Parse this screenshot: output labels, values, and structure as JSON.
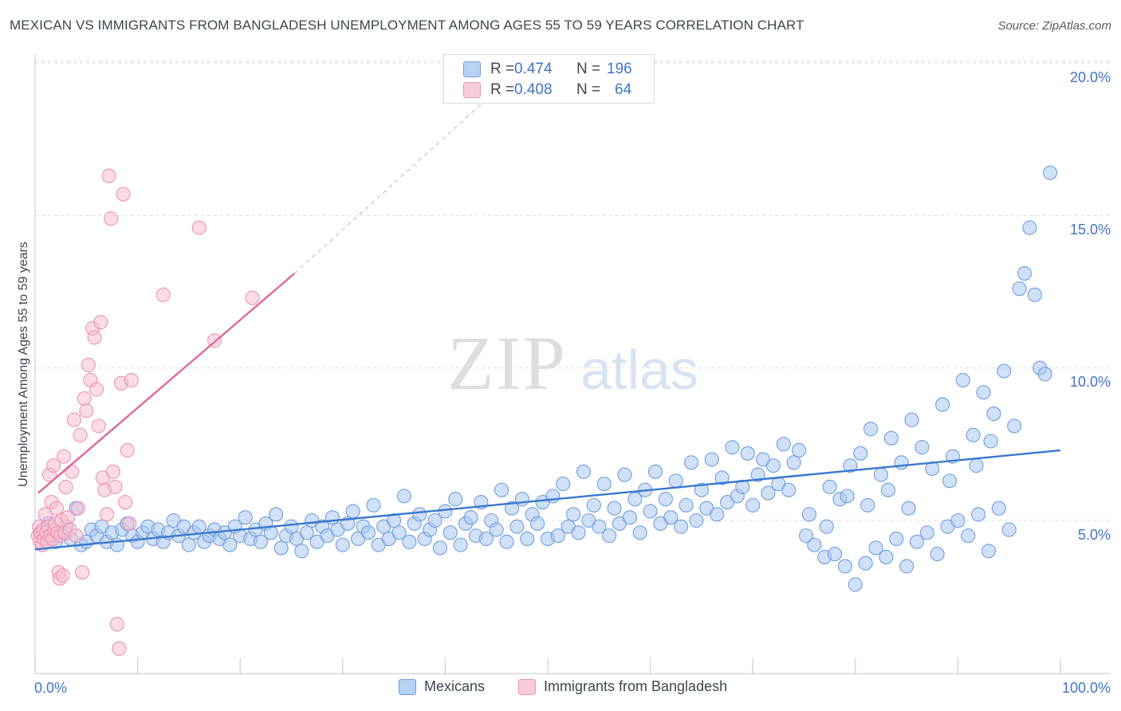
{
  "header": {
    "title": "MEXICAN VS IMMIGRANTS FROM BANGLADESH UNEMPLOYMENT AMONG AGES 55 TO 59 YEARS CORRELATION CHART",
    "source": "Source: ZipAtlas.com"
  },
  "watermark": {
    "zip": "ZIP",
    "atlas": "atlas"
  },
  "legend_top": {
    "rows": [
      {
        "r_label": "R =",
        "r_value": "0.474",
        "n_label": "N =",
        "n_value": "196"
      },
      {
        "r_label": "R =",
        "r_value": "0.408",
        "n_label": "N =",
        "n_value": "64"
      }
    ]
  },
  "legend_bottom": {
    "items": [
      "Mexicans",
      "Immigrants from Bangladesh"
    ]
  },
  "colors": {
    "blue_fill": "#a9c7f0",
    "blue_stroke": "#6f9fdc",
    "blue_line": "#3a77d0",
    "pink_fill": "#f7c0d1",
    "pink_stroke": "#eb94b1",
    "pink_line": "#e0679a",
    "tick_text": "#3f74c9",
    "grid": "#dddddd"
  },
  "chart_data": {
    "type": "scatter",
    "title": "MEXICAN VS IMMIGRANTS FROM BANGLADESH UNEMPLOYMENT AMONG AGES 55 TO 59 YEARS CORRELATION CHART",
    "xlabel": "",
    "ylabel": "Unemployment Among Ages 55 to 59 years",
    "xlim": [
      0,
      100
    ],
    "ylim": [
      0,
      20.8
    ],
    "x_tick_labels": [
      "0.0%",
      "100.0%"
    ],
    "y_ticks": [
      5,
      10,
      15,
      20
    ],
    "y_tick_labels": [
      "5.0%",
      "10.0%",
      "15.0%",
      "20.0%"
    ],
    "grid": true,
    "legend_position": "top-center",
    "series": [
      {
        "name": "Mexicans",
        "R": 0.474,
        "N": 196,
        "trend": {
          "x": [
            0,
            100
          ],
          "y": [
            4.05,
            7.3
          ]
        },
        "points": [
          [
            0.5,
            4.6
          ],
          [
            1.0,
            4.7
          ],
          [
            1.3,
            4.9
          ],
          [
            1.6,
            4.5
          ],
          [
            2.0,
            4.3
          ],
          [
            2.5,
            4.6
          ],
          [
            3.0,
            4.8
          ],
          [
            3.5,
            4.4
          ],
          [
            4.0,
            5.4
          ],
          [
            4.5,
            4.2
          ],
          [
            5.0,
            4.3
          ],
          [
            5.5,
            4.7
          ],
          [
            6.0,
            4.5
          ],
          [
            6.5,
            4.8
          ],
          [
            7.0,
            4.3
          ],
          [
            7.5,
            4.6
          ],
          [
            8.0,
            4.2
          ],
          [
            8.5,
            4.7
          ],
          [
            9.0,
            4.9
          ],
          [
            9.5,
            4.5
          ],
          [
            10.0,
            4.3
          ],
          [
            10.5,
            4.6
          ],
          [
            11.0,
            4.8
          ],
          [
            11.5,
            4.4
          ],
          [
            12.0,
            4.7
          ],
          [
            12.5,
            4.3
          ],
          [
            13.0,
            4.6
          ],
          [
            13.5,
            5.0
          ],
          [
            14.0,
            4.5
          ],
          [
            14.5,
            4.8
          ],
          [
            15.0,
            4.2
          ],
          [
            15.5,
            4.6
          ],
          [
            16.0,
            4.8
          ],
          [
            16.5,
            4.3
          ],
          [
            17.0,
            4.5
          ],
          [
            17.5,
            4.7
          ],
          [
            18.0,
            4.4
          ],
          [
            18.5,
            4.6
          ],
          [
            19.0,
            4.2
          ],
          [
            19.5,
            4.8
          ],
          [
            20.0,
            4.5
          ],
          [
            20.5,
            5.1
          ],
          [
            21.0,
            4.4
          ],
          [
            21.5,
            4.7
          ],
          [
            22.0,
            4.3
          ],
          [
            22.5,
            4.9
          ],
          [
            23.0,
            4.6
          ],
          [
            23.5,
            5.2
          ],
          [
            24.0,
            4.1
          ],
          [
            24.5,
            4.5
          ],
          [
            25.0,
            4.8
          ],
          [
            25.5,
            4.4
          ],
          [
            26.0,
            4.0
          ],
          [
            26.5,
            4.6
          ],
          [
            27.0,
            5.0
          ],
          [
            27.5,
            4.3
          ],
          [
            28.0,
            4.8
          ],
          [
            28.5,
            4.5
          ],
          [
            29.0,
            5.1
          ],
          [
            29.5,
            4.7
          ],
          [
            30.0,
            4.2
          ],
          [
            30.5,
            4.9
          ],
          [
            31.0,
            5.3
          ],
          [
            31.5,
            4.4
          ],
          [
            32.0,
            4.8
          ],
          [
            32.5,
            4.6
          ],
          [
            33.0,
            5.5
          ],
          [
            33.5,
            4.2
          ],
          [
            34.0,
            4.8
          ],
          [
            34.5,
            4.4
          ],
          [
            35.0,
            5.0
          ],
          [
            35.5,
            4.6
          ],
          [
            36.0,
            5.8
          ],
          [
            36.5,
            4.3
          ],
          [
            37.0,
            4.9
          ],
          [
            37.5,
            5.2
          ],
          [
            38.0,
            4.4
          ],
          [
            38.5,
            4.7
          ],
          [
            39.0,
            5.0
          ],
          [
            39.5,
            4.1
          ],
          [
            40.0,
            5.3
          ],
          [
            40.5,
            4.6
          ],
          [
            41.0,
            5.7
          ],
          [
            41.5,
            4.2
          ],
          [
            42.0,
            4.9
          ],
          [
            42.5,
            5.1
          ],
          [
            43.0,
            4.5
          ],
          [
            43.5,
            5.6
          ],
          [
            44.0,
            4.4
          ],
          [
            44.5,
            5.0
          ],
          [
            45.0,
            4.7
          ],
          [
            45.5,
            6.0
          ],
          [
            46.0,
            4.3
          ],
          [
            46.5,
            5.4
          ],
          [
            47.0,
            4.8
          ],
          [
            47.5,
            5.7
          ],
          [
            48.0,
            4.4
          ],
          [
            48.5,
            5.2
          ],
          [
            49.0,
            4.9
          ],
          [
            49.5,
            5.6
          ],
          [
            50.0,
            4.4
          ],
          [
            50.5,
            5.8
          ],
          [
            51.0,
            4.5
          ],
          [
            51.5,
            6.2
          ],
          [
            52.0,
            4.8
          ],
          [
            52.5,
            5.2
          ],
          [
            53.0,
            4.6
          ],
          [
            53.5,
            6.6
          ],
          [
            54.0,
            5.0
          ],
          [
            54.5,
            5.5
          ],
          [
            55.0,
            4.8
          ],
          [
            55.5,
            6.2
          ],
          [
            56.0,
            4.5
          ],
          [
            56.5,
            5.4
          ],
          [
            57.0,
            4.9
          ],
          [
            57.5,
            6.5
          ],
          [
            58.0,
            5.1
          ],
          [
            58.5,
            5.7
          ],
          [
            59.0,
            4.6
          ],
          [
            59.5,
            6.0
          ],
          [
            60.0,
            5.3
          ],
          [
            60.5,
            6.6
          ],
          [
            61.0,
            4.9
          ],
          [
            61.5,
            5.7
          ],
          [
            62.0,
            5.1
          ],
          [
            62.5,
            6.3
          ],
          [
            63.0,
            4.8
          ],
          [
            63.5,
            5.5
          ],
          [
            64.0,
            6.9
          ],
          [
            64.5,
            5.0
          ],
          [
            65.0,
            6.0
          ],
          [
            65.5,
            5.4
          ],
          [
            66.0,
            7.0
          ],
          [
            66.5,
            5.2
          ],
          [
            67.0,
            6.4
          ],
          [
            67.5,
            5.6
          ],
          [
            68.0,
            7.4
          ],
          [
            68.5,
            5.8
          ],
          [
            69.0,
            6.1
          ],
          [
            69.5,
            7.2
          ],
          [
            70.0,
            5.5
          ],
          [
            70.5,
            6.5
          ],
          [
            71.0,
            7.0
          ],
          [
            71.5,
            5.9
          ],
          [
            72.0,
            6.8
          ],
          [
            72.5,
            6.2
          ],
          [
            73.0,
            7.5
          ],
          [
            73.5,
            6.0
          ],
          [
            74.0,
            6.9
          ],
          [
            74.5,
            7.3
          ],
          [
            76.0,
            4.2
          ],
          [
            77.0,
            3.8
          ],
          [
            78.0,
            3.9
          ],
          [
            79.0,
            3.5
          ],
          [
            80.0,
            2.9
          ],
          [
            81.0,
            3.6
          ],
          [
            82.0,
            4.1
          ],
          [
            83.0,
            3.8
          ],
          [
            84.0,
            4.4
          ],
          [
            85.0,
            3.5
          ],
          [
            86.0,
            4.3
          ],
          [
            87.0,
            4.6
          ],
          [
            88.0,
            3.9
          ],
          [
            89.0,
            4.8
          ],
          [
            90.0,
            5.0
          ],
          [
            91.0,
            4.5
          ],
          [
            92.0,
            5.2
          ],
          [
            93.0,
            4.0
          ],
          [
            94.0,
            5.4
          ],
          [
            95.0,
            4.7
          ],
          [
            75.5,
            5.2
          ],
          [
            77.5,
            6.1
          ],
          [
            78.5,
            5.7
          ],
          [
            79.5,
            6.8
          ],
          [
            80.5,
            7.2
          ],
          [
            81.5,
            8.0
          ],
          [
            82.5,
            6.5
          ],
          [
            83.5,
            7.7
          ],
          [
            84.5,
            6.9
          ],
          [
            85.5,
            8.3
          ],
          [
            86.5,
            7.4
          ],
          [
            87.5,
            6.7
          ],
          [
            88.5,
            8.8
          ],
          [
            89.5,
            7.1
          ],
          [
            90.5,
            9.6
          ],
          [
            91.5,
            7.8
          ],
          [
            92.5,
            9.2
          ],
          [
            93.5,
            8.5
          ],
          [
            94.5,
            9.9
          ],
          [
            95.5,
            8.1
          ],
          [
            96.0,
            12.6
          ],
          [
            96.5,
            13.1
          ],
          [
            97.0,
            14.6
          ],
          [
            97.5,
            12.4
          ],
          [
            98.0,
            10.0
          ],
          [
            98.5,
            9.8
          ],
          [
            99.0,
            16.4
          ],
          [
            93.2,
            7.6
          ],
          [
            91.8,
            6.8
          ],
          [
            89.2,
            6.3
          ],
          [
            85.2,
            5.4
          ],
          [
            83.2,
            6.0
          ],
          [
            81.2,
            5.5
          ],
          [
            79.2,
            5.8
          ],
          [
            77.2,
            4.8
          ],
          [
            75.2,
            4.5
          ]
        ]
      },
      {
        "name": "Immigrants from Bangladesh",
        "R": 0.408,
        "N": 64,
        "trend": {
          "x": [
            0.3,
            25.3
          ],
          "y": [
            5.9,
            13.1
          ]
        },
        "trend_extension": {
          "x": [
            25.3,
            44.0
          ],
          "y": [
            13.1,
            18.8
          ]
        },
        "points": [
          [
            0.3,
            4.5
          ],
          [
            0.4,
            4.8
          ],
          [
            0.5,
            4.3
          ],
          [
            0.6,
            4.6
          ],
          [
            0.7,
            4.2
          ],
          [
            0.8,
            4.7
          ],
          [
            0.9,
            4.4
          ],
          [
            1.0,
            5.2
          ],
          [
            1.1,
            4.6
          ],
          [
            1.2,
            4.3
          ],
          [
            1.3,
            4.8
          ],
          [
            1.4,
            6.5
          ],
          [
            1.5,
            4.5
          ],
          [
            1.6,
            5.6
          ],
          [
            1.7,
            4.4
          ],
          [
            1.8,
            6.8
          ],
          [
            1.9,
            4.7
          ],
          [
            2.0,
            4.9
          ],
          [
            2.1,
            5.4
          ],
          [
            2.2,
            4.6
          ],
          [
            2.3,
            3.3
          ],
          [
            2.4,
            3.1
          ],
          [
            2.5,
            4.5
          ],
          [
            2.6,
            5.0
          ],
          [
            2.7,
            3.2
          ],
          [
            2.8,
            7.1
          ],
          [
            2.9,
            4.6
          ],
          [
            3.0,
            6.1
          ],
          [
            3.2,
            5.1
          ],
          [
            3.4,
            4.7
          ],
          [
            3.6,
            6.6
          ],
          [
            3.8,
            8.3
          ],
          [
            4.0,
            4.5
          ],
          [
            4.2,
            5.4
          ],
          [
            4.4,
            7.8
          ],
          [
            4.6,
            3.3
          ],
          [
            4.8,
            9.0
          ],
          [
            5.0,
            8.6
          ],
          [
            5.2,
            10.1
          ],
          [
            5.4,
            9.6
          ],
          [
            5.6,
            11.3
          ],
          [
            5.8,
            11.0
          ],
          [
            6.0,
            9.3
          ],
          [
            6.2,
            8.1
          ],
          [
            6.4,
            11.5
          ],
          [
            6.6,
            6.4
          ],
          [
            6.8,
            6.0
          ],
          [
            7.0,
            5.2
          ],
          [
            7.2,
            16.3
          ],
          [
            7.4,
            14.9
          ],
          [
            7.6,
            6.6
          ],
          [
            7.8,
            6.1
          ],
          [
            8.0,
            1.6
          ],
          [
            8.2,
            0.8
          ],
          [
            8.4,
            9.5
          ],
          [
            8.6,
            15.7
          ],
          [
            8.8,
            5.6
          ],
          [
            9.0,
            7.3
          ],
          [
            9.2,
            4.9
          ],
          [
            9.4,
            9.6
          ],
          [
            12.5,
            12.4
          ],
          [
            16.0,
            14.6
          ],
          [
            17.5,
            10.9
          ],
          [
            21.2,
            12.3
          ]
        ]
      }
    ]
  }
}
